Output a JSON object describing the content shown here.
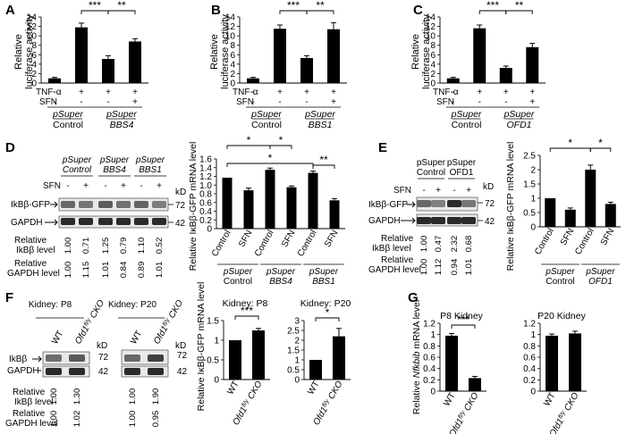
{
  "panels": {
    "A": {
      "letter": "A",
      "ylabel": [
        "Relative",
        "luciferase activity"
      ],
      "yticks": [
        "0",
        "2",
        "4",
        "6",
        "8",
        "10",
        "12",
        "14"
      ],
      "tnf_label": "TNF-α",
      "sfn_label": "SFN",
      "tnf": [
        "-",
        "+",
        "+",
        "+"
      ],
      "sfn": [
        "-",
        "-",
        "-",
        "+"
      ],
      "group_labels": [
        [
          "pSuper",
          "Control"
        ],
        [
          "pSuper",
          "BBS4"
        ]
      ],
      "sig": [
        "***",
        "**"
      ]
    },
    "B": {
      "letter": "B",
      "ylabel": [
        "Relative",
        "luciferase activity"
      ],
      "yticks": [
        "0",
        "2",
        "4",
        "6",
        "8",
        "10",
        "12",
        "14"
      ],
      "tnf_label": "TNF-α",
      "sfn_label": "SFN",
      "tnf": [
        "-",
        "+",
        "+",
        "+"
      ],
      "sfn": [
        "-",
        "-",
        "-",
        "+"
      ],
      "group_labels": [
        [
          "pSuper",
          "Control"
        ],
        [
          "pSuper",
          "BBS1"
        ]
      ],
      "sig": [
        "***",
        "**"
      ]
    },
    "C": {
      "letter": "C",
      "ylabel": [
        "Relative",
        "luciferase activity"
      ],
      "yticks": [
        "0",
        "2",
        "4",
        "6",
        "8",
        "10",
        "12",
        "14"
      ],
      "tnf_label": "TNF-α",
      "sfn_label": "SFN",
      "tnf": [
        "-",
        "+",
        "+",
        "+"
      ],
      "sfn": [
        "-",
        "-",
        "-",
        "+"
      ],
      "group_labels": [
        [
          "pSuper",
          "Control"
        ],
        [
          "pSuper",
          "OFD1"
        ]
      ],
      "sig": [
        "***",
        "**"
      ]
    },
    "D": {
      "letter": "D",
      "blot": {
        "group_labels": [
          [
            "pSuper",
            "Control"
          ],
          [
            "pSuper",
            "BBS4"
          ],
          [
            "pSuper",
            "BBS1"
          ]
        ],
        "sfn_label": "SFN",
        "sfn": [
          "-",
          "+",
          "-",
          "+",
          "-",
          "+"
        ],
        "kd_label": "kD",
        "bands": [
          "IkBβ-GFP",
          "GAPDH"
        ],
        "kd": [
          "72",
          "42"
        ],
        "row1_label": [
          "Relative",
          "IkBβ level"
        ],
        "row1": [
          "1.00",
          "0.71",
          "1.25",
          "0.79",
          "1.10",
          "0.52"
        ],
        "row2_label": [
          "Relative",
          "GAPDH level"
        ],
        "row2": [
          "1.00",
          "1.15",
          "1.01",
          "0.84",
          "0.89",
          "1.01"
        ]
      },
      "chart": {
        "ylabel": "Relative IκBβ-GFP mRNA level",
        "yticks": [
          "0",
          "0.2",
          "0.4",
          "0.6",
          "0.8",
          "1.0",
          "1.2",
          "1.4",
          "1.6"
        ],
        "xlabels": [
          "Control",
          "SFN",
          "Control",
          "SFN",
          "Control",
          "SFN"
        ],
        "group_labels": [
          [
            "pSuper",
            "Control"
          ],
          [
            "pSuper",
            "BBS4"
          ],
          [
            "pSuper",
            "BBS1"
          ]
        ],
        "sig": [
          "*",
          "*",
          "*",
          "**"
        ]
      }
    },
    "E": {
      "letter": "E",
      "blot": {
        "group_labels": [
          [
            "pSuper",
            "Control"
          ],
          [
            "pSuper",
            "OFD1"
          ]
        ],
        "sfn_label": "SFN",
        "sfn": [
          "-",
          "+",
          "-",
          "+"
        ],
        "kd_label": "kD",
        "bands": [
          "IkBβ-GFP",
          "GAPDH"
        ],
        "kd": [
          "72",
          "42"
        ],
        "row1_label": [
          "Relative",
          "IkBβ level"
        ],
        "row1": [
          "1.00",
          "0.47",
          "2.32",
          "0.68"
        ],
        "row2_label": [
          "Relative",
          "GAPDH level"
        ],
        "row2": [
          "1.00",
          "1.12",
          "0.94",
          "1.01"
        ]
      },
      "chart": {
        "ylabel": "Relative IκBβ-GFP mRNA level",
        "yticks": [
          "0",
          "0.5",
          "1",
          "1.5",
          "2",
          "2.5"
        ],
        "xlabels": [
          "Control",
          "SFN",
          "Control",
          "SFN"
        ],
        "group_labels": [
          [
            "pSuper",
            "Control"
          ],
          [
            "pSuper",
            "OFD1"
          ]
        ],
        "sig": [
          "*",
          "*"
        ]
      }
    },
    "F": {
      "letter": "F",
      "blot": {
        "titles": [
          "Kidney: P8",
          "Kidney: P20"
        ],
        "lanes": [
          "WT",
          "Ofd1",
          "fl/y",
          "CKO"
        ],
        "kd_label": "kD",
        "bands": [
          "IkBβ",
          "GAPDH"
        ],
        "kd": [
          "72",
          "42"
        ],
        "row1_label": [
          "Relative",
          "IkBβ level"
        ],
        "row1": [
          "1.00",
          "1.30",
          "1.00",
          "1.90"
        ],
        "row2_label": [
          "Relative",
          "GAPDH level"
        ],
        "row2": [
          "1.00",
          "1.02",
          "1.00",
          "0.95"
        ]
      },
      "ylabel": "Relative IκBβ-GFP mRNA level",
      "charts": [
        {
          "title": "Kidney: P8",
          "yticks": [
            "0",
            "0.5",
            "1",
            "1.5"
          ],
          "sig": [
            "***"
          ]
        },
        {
          "title": "Kidney: P20",
          "yticks": [
            "0",
            "0.5",
            "1",
            "1.5",
            "2",
            "2.5",
            "3"
          ],
          "sig": [
            "*"
          ]
        }
      ]
    },
    "G": {
      "letter": "G",
      "ylabel": [
        "Relative ",
        "Nfkbib",
        " mRNA level"
      ],
      "charts": [
        {
          "title": "P8 Kidney",
          "yticks": [
            "0",
            "0.2",
            "0.4",
            "0.6",
            "0.8",
            "1",
            "1.2"
          ],
          "sig": [
            "***"
          ]
        },
        {
          "title": "P20 Kidney",
          "yticks": [
            "0",
            "0.2",
            "0.4",
            "0.6",
            "0.8",
            "1",
            "1.2"
          ],
          "sig": []
        }
      ]
    },
    "lanes_wt_cko": [
      "WT",
      "Ofd1",
      "fl/y",
      "CKO"
    ]
  },
  "chart_data": [
    {
      "panel": "A",
      "type": "bar",
      "categories": [
        "1",
        "2",
        "3",
        "4"
      ],
      "values": [
        1,
        11.8,
        5.1,
        8.8
      ],
      "errors": [
        0.2,
        0.9,
        0.7,
        0.6
      ],
      "ylim": [
        0,
        14
      ]
    },
    {
      "panel": "B",
      "type": "bar",
      "categories": [
        "1",
        "2",
        "3",
        "4"
      ],
      "values": [
        1,
        11.5,
        5.3,
        11.4
      ],
      "errors": [
        0.2,
        0.8,
        0.5,
        1.4
      ],
      "ylim": [
        0,
        14
      ]
    },
    {
      "panel": "C",
      "type": "bar",
      "categories": [
        "1",
        "2",
        "3",
        "4"
      ],
      "values": [
        1,
        11.6,
        3.2,
        7.6
      ],
      "errors": [
        0.2,
        0.7,
        0.4,
        0.8
      ],
      "ylim": [
        0,
        14
      ]
    },
    {
      "panel": "D",
      "type": "bar",
      "categories": [
        "Control",
        "SFN",
        "Control",
        "SFN",
        "Control",
        "SFN"
      ],
      "values": [
        1.17,
        0.88,
        1.35,
        0.95,
        1.28,
        0.65
      ],
      "errors": [
        0,
        0.05,
        0.04,
        0.03,
        0.04,
        0.04
      ],
      "ylim": [
        0,
        1.6
      ]
    },
    {
      "panel": "E",
      "type": "bar",
      "categories": [
        "Control",
        "SFN",
        "Control",
        "SFN"
      ],
      "values": [
        1.0,
        0.6,
        2.0,
        0.8
      ],
      "errors": [
        0,
        0.06,
        0.16,
        0.06
      ],
      "ylim": [
        0,
        2.5
      ]
    },
    {
      "panel": "F-P8",
      "type": "bar",
      "categories": [
        "WT",
        "Ofd1 fl/y CKO"
      ],
      "values": [
        1.0,
        1.25
      ],
      "errors": [
        0,
        0.05
      ],
      "ylim": [
        0,
        1.5
      ]
    },
    {
      "panel": "F-P20",
      "type": "bar",
      "categories": [
        "WT",
        "Ofd1 fl/y CKO"
      ],
      "values": [
        1.0,
        2.2
      ],
      "errors": [
        0,
        0.4
      ],
      "ylim": [
        0,
        3
      ]
    },
    {
      "panel": "G-P8",
      "type": "bar",
      "categories": [
        "WT",
        "Ofd1 fl/y CKO"
      ],
      "values": [
        0.98,
        0.23
      ],
      "errors": [
        0.04,
        0.03
      ],
      "ylim": [
        0,
        1.2
      ]
    },
    {
      "panel": "G-P20",
      "type": "bar",
      "categories": [
        "WT",
        "Ofd1 fl/y CKO"
      ],
      "values": [
        0.98,
        1.02
      ],
      "errors": [
        0.03,
        0.04
      ],
      "ylim": [
        0,
        1.2
      ]
    }
  ]
}
